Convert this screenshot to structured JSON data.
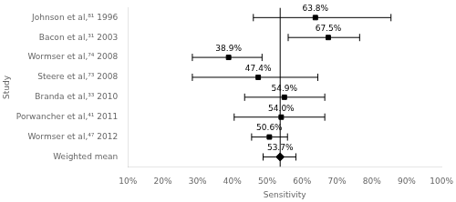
{
  "chart_data": {
    "type": "forest",
    "xlabel": "Sensitivity",
    "ylabel": "Study",
    "categories": [
      "Johnson et al,⁸¹ 1996",
      "Bacon et al,³¹ 2003",
      "Wormser et al,⁷⁴ 2008",
      "Steere et al,⁷³ 2008",
      "Branda et al,³³ 2010",
      "Porwancher et al,⁴¹ 2011",
      "Wormser et al,⁴⁷ 2012",
      "Weighted mean"
    ],
    "series": [
      {
        "values": [
          0.638,
          0.675,
          0.389,
          0.474,
          0.549,
          0.54,
          0.506,
          null
        ],
        "ci_low": [
          0.46,
          0.56,
          0.285,
          0.285,
          0.435,
          0.405,
          0.455,
          null
        ],
        "ci_high": [
          0.855,
          0.765,
          0.485,
          0.645,
          0.665,
          0.665,
          0.558,
          null
        ],
        "value_labels": [
          "63.8%",
          "67.5%",
          "38.9%",
          "47.4%",
          "54.9%",
          "54.0%",
          "50.6%",
          null
        ],
        "marker": "square",
        "color": "black"
      },
      {
        "values": [
          null,
          null,
          null,
          null,
          null,
          null,
          null,
          0.537
        ],
        "ci_low": [
          null,
          null,
          null,
          null,
          null,
          null,
          null,
          0.488
        ],
        "ci_high": [
          null,
          null,
          null,
          null,
          null,
          null,
          null,
          0.582
        ],
        "value_labels": [
          null,
          null,
          null,
          null,
          null,
          null,
          null,
          "53.7%"
        ],
        "marker": "diamond",
        "color": "black"
      }
    ],
    "xlim": [
      0.1,
      1.0
    ],
    "xticks": [
      {
        "value": 0.1,
        "label": "10%"
      },
      {
        "value": 0.2,
        "label": "20%"
      },
      {
        "value": 0.3,
        "label": "30%"
      },
      {
        "value": 0.4,
        "label": "40%"
      },
      {
        "value": 0.5,
        "label": "50%"
      },
      {
        "value": 0.6,
        "label": "60%"
      },
      {
        "value": 0.7,
        "label": "70%"
      },
      {
        "value": 0.8,
        "label": "80%"
      },
      {
        "value": 0.9,
        "label": "90%"
      },
      {
        "value": 1.0,
        "label": "100%"
      }
    ],
    "vline": 0.537,
    "grid": false,
    "data_labels": true
  }
}
